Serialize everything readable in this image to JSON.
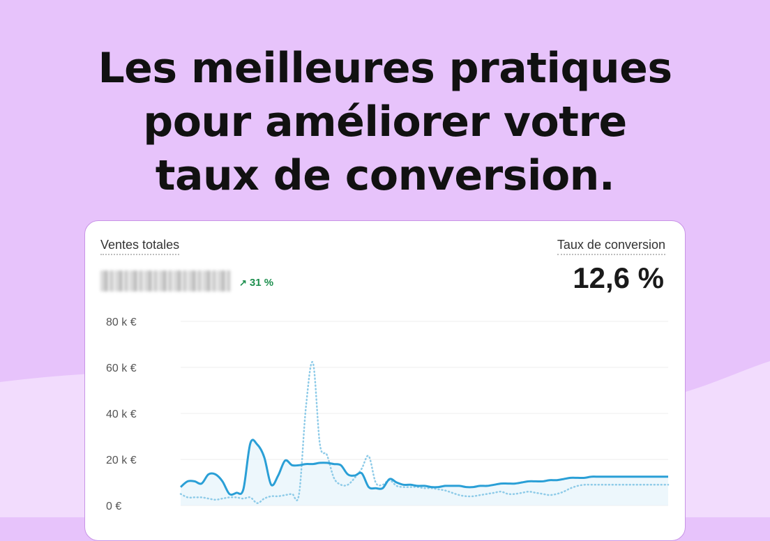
{
  "headline": {
    "line1": "Les meilleures pratiques",
    "line2": "pour améliorer votre",
    "line3": "taux de conversion."
  },
  "card": {
    "sales_label": "Ventes totales",
    "sales_growth": "31 %",
    "conversion_label": "Taux de conversion",
    "conversion_value": "12,6 %"
  },
  "colors": {
    "background": "#e7c3fb",
    "background_lower": "#f2dcfd",
    "card_border": "#c894e6",
    "line_current": "#2a9fd6",
    "line_previous": "#8ecbe8",
    "growth": "#1d8f4e"
  },
  "icons": {
    "growth": "arrow-up-right-icon"
  },
  "chart_data": {
    "type": "line",
    "y_tick_labels": [
      "80 k €",
      "60 k €",
      "40 k €",
      "20 k €",
      "0 €"
    ],
    "ylim": [
      0,
      80000
    ],
    "grid": true,
    "x": [
      0,
      1,
      2,
      3,
      4,
      5,
      6,
      7,
      8,
      9,
      10,
      11,
      12,
      13,
      14,
      15,
      16,
      17,
      18,
      19,
      20,
      21,
      22,
      23,
      24,
      25,
      26,
      27,
      28,
      29,
      30,
      31,
      32,
      33,
      34,
      35,
      36,
      37,
      38,
      39,
      40,
      41,
      42,
      43,
      44,
      45,
      46,
      47,
      48,
      49,
      50,
      51,
      52,
      53,
      54,
      55,
      56,
      57,
      58,
      59,
      60,
      61,
      62,
      63,
      64,
      65,
      66,
      67,
      68,
      69,
      70
    ],
    "series": [
      {
        "style": "solid",
        "values": [
          8000,
          10500,
          10500,
          9500,
          13500,
          13500,
          10500,
          5000,
          5500,
          7000,
          27000,
          26500,
          21000,
          9000,
          13000,
          19500,
          17500,
          17500,
          18000,
          18000,
          18500,
          18500,
          18000,
          17500,
          13500,
          13000,
          14000,
          8000,
          7500,
          7500,
          11500,
          10000,
          9000,
          9000,
          8500,
          8500,
          8000,
          8000,
          8500,
          8500,
          8500,
          8000,
          8000,
          8500,
          8500,
          9000,
          9500,
          9500,
          9500,
          10000,
          10500,
          10500,
          10500,
          11000,
          11000,
          11500,
          12000,
          12000,
          12000,
          12500,
          12500,
          12500,
          12500,
          12500,
          12500,
          12500,
          12500,
          12500,
          12500,
          12500,
          12500
        ]
      },
      {
        "style": "dotted",
        "values": [
          5000,
          3500,
          3500,
          3500,
          3000,
          2500,
          3000,
          3500,
          3500,
          3000,
          3500,
          1000,
          3000,
          4000,
          4000,
          4500,
          5000,
          5000,
          43000,
          62000,
          26500,
          22000,
          12000,
          9000,
          9000,
          12000,
          16000,
          21500,
          10000,
          9000,
          11000,
          8500,
          8000,
          8000,
          8000,
          7500,
          7500,
          7000,
          6500,
          5500,
          4500,
          4000,
          4000,
          4500,
          5000,
          5500,
          6000,
          5000,
          5000,
          5500,
          6000,
          5500,
          5000,
          4500,
          5000,
          6000,
          7500,
          8500,
          9000,
          9000,
          9000,
          9000,
          9000,
          9000,
          9000,
          9000,
          9000,
          9000,
          9000,
          9000,
          9000
        ]
      }
    ]
  }
}
